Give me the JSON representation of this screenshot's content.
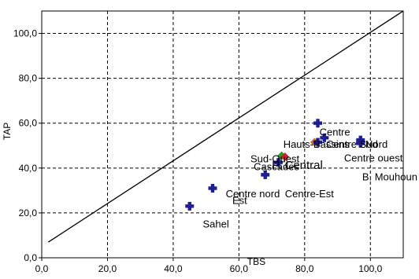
{
  "colors": {
    "point": "#1f1f8f",
    "point_red": "#c0282a",
    "point_green": "#2e9b2e",
    "point_orange": "#d2691e",
    "grid": "#000000",
    "frame": "#000000",
    "background": "#ffffff"
  },
  "chart_data": {
    "type": "scatter",
    "title": "",
    "xlabel": "TBS",
    "ylabel": "TAP",
    "xlim": [
      0,
      110
    ],
    "ylim": [
      0,
      110
    ],
    "x_ticks": [
      0,
      20,
      40,
      60,
      80,
      100
    ],
    "y_ticks": [
      0,
      20,
      40,
      60,
      80,
      100
    ],
    "x_tick_labels": [
      "0,0",
      "20,0",
      "40,0",
      "60,0",
      "80,0",
      "100,0"
    ],
    "y_tick_labels": [
      "0,0",
      "20,0",
      "40,0",
      "60,0",
      "80,0",
      "100,0"
    ],
    "grid": true,
    "grid_style": "dashed",
    "reference_line": {
      "from": [
        2,
        7
      ],
      "to": [
        110,
        110
      ]
    },
    "points": [
      {
        "name": "Sahel",
        "x": 45.0,
        "y": 23.0,
        "color": "point"
      },
      {
        "name": "Est",
        "x": 52.0,
        "y": 31.0,
        "color": "point"
      },
      {
        "name": "Centre nord",
        "x": 68.0,
        "y": 37.0,
        "color": "point"
      },
      {
        "name": "Cascades",
        "x": 72.0,
        "y": 42.5,
        "color": "point"
      },
      {
        "name": "Sud-Ouest",
        "x": 73.0,
        "y": 45.5,
        "color": "point_green"
      },
      {
        "name": "P. Central",
        "x": 74.0,
        "y": 45.0,
        "color": "point_red"
      },
      {
        "name": "Hauts-Bassins",
        "x": 83.0,
        "y": 51.5,
        "color": "point_orange"
      },
      {
        "name": "Centre-Est",
        "x": 84.0,
        "y": 51.5,
        "color": "point"
      },
      {
        "name": "Centre",
        "x": 84.0,
        "y": 60.0,
        "color": "point"
      },
      {
        "name": "Centre Sud",
        "x": 86.0,
        "y": 53.5,
        "color": "point"
      },
      {
        "name": "Centre ouest",
        "x": 97.0,
        "y": 51.5,
        "color": "point"
      },
      {
        "name": "Nord",
        "x": 97.0,
        "y": 52.5,
        "color": "point"
      },
      {
        "name": "B. Mouhoun",
        "x": 97.0,
        "y": 51.0,
        "color": "point"
      }
    ],
    "labels": [
      {
        "text": "Sahel",
        "x": 49.0,
        "y": 13.5,
        "size": "small"
      },
      {
        "text": "Est",
        "x": 58.0,
        "y": 24.0,
        "size": "small"
      },
      {
        "text": "Centre nord",
        "x": 56.0,
        "y": 27.0,
        "size": "small"
      },
      {
        "text": "Centre-Est",
        "x": 74.0,
        "y": 27.0,
        "size": "small"
      },
      {
        "text": "Cascades",
        "x": 64.5,
        "y": 39.0,
        "size": "small"
      },
      {
        "text": "Sud-Ouest",
        "x": 63.5,
        "y": 42.5,
        "size": "small"
      },
      {
        "text": "P. Central",
        "x": 70.0,
        "y": 39.5,
        "size": "big"
      },
      {
        "text": "Hauts-Bassins",
        "x": 73.5,
        "y": 49.0,
        "size": "small"
      },
      {
        "text": "Centre",
        "x": 84.5,
        "y": 54.5,
        "size": "small"
      },
      {
        "text": "Centre Sud",
        "x": 86.5,
        "y": 49.0,
        "size": "small"
      },
      {
        "text": "Nord",
        "x": 98.5,
        "y": 49.0,
        "size": "small"
      },
      {
        "text": "Centre ouest",
        "x": 92.0,
        "y": 43.0,
        "size": "small"
      },
      {
        "text": "B. Mouhoun",
        "x": 97.5,
        "y": 34.5,
        "size": "small"
      }
    ]
  }
}
